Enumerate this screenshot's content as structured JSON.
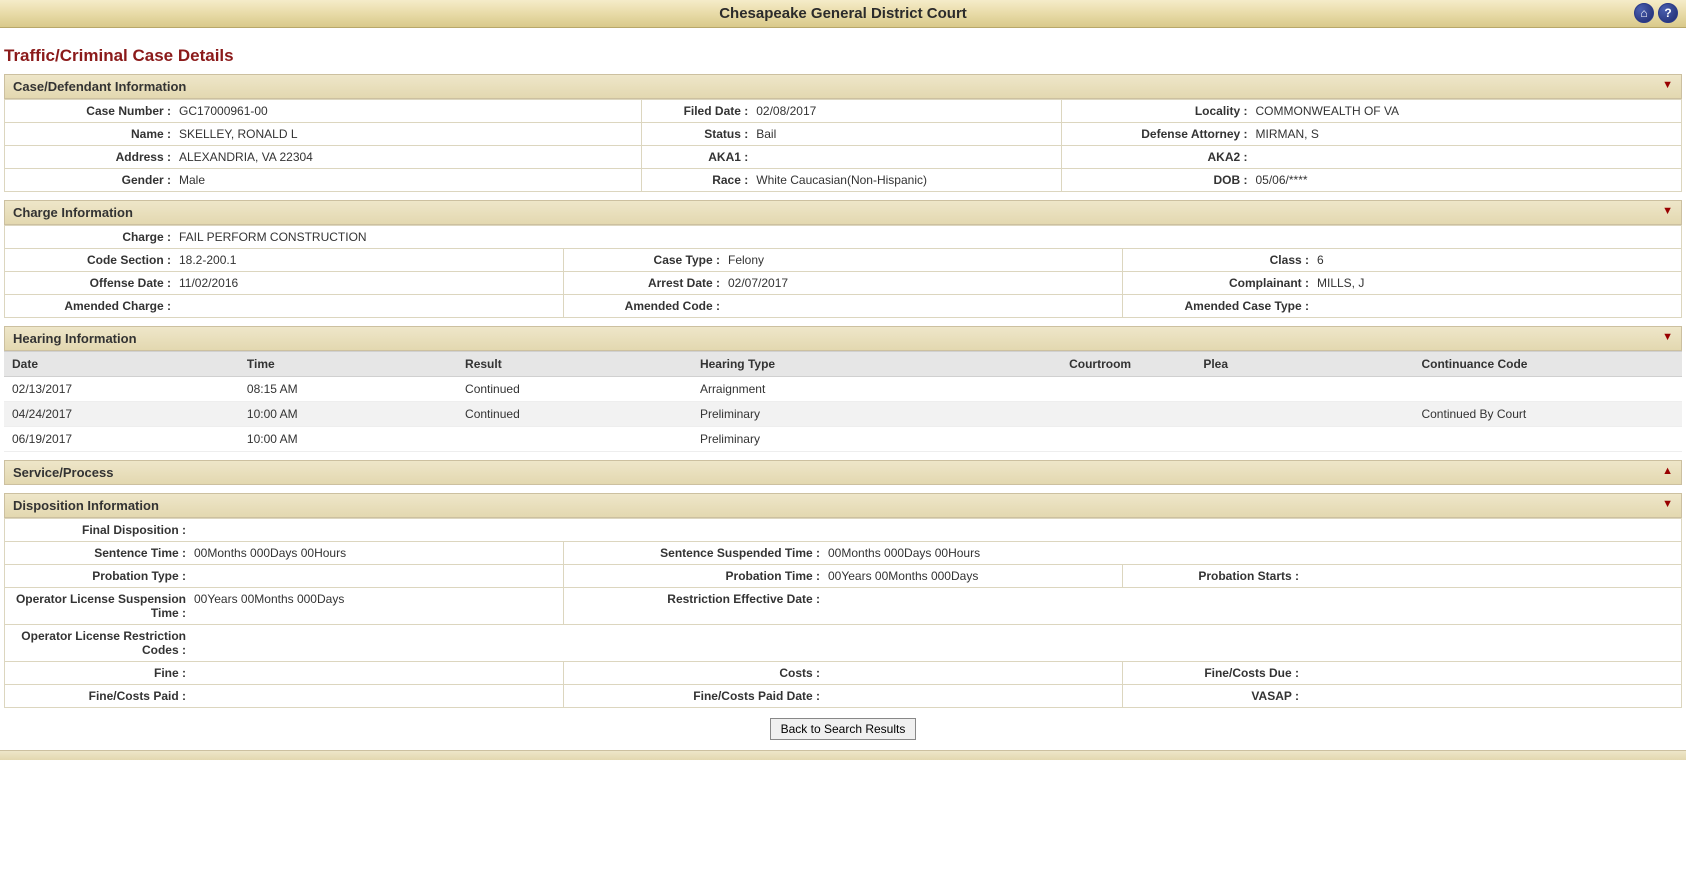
{
  "header": {
    "court_name": "Chesapeake General District Court"
  },
  "page_title": "Traffic/Criminal Case Details",
  "sections": {
    "case_defendant": {
      "title": "Case/Defendant Information",
      "case_number_lbl": "Case Number :",
      "case_number": "GC17000961-00",
      "filed_date_lbl": "Filed Date :",
      "filed_date": "02/08/2017",
      "locality_lbl": "Locality :",
      "locality": "COMMONWEALTH OF VA",
      "name_lbl": "Name :",
      "name": "SKELLEY, RONALD L",
      "status_lbl": "Status :",
      "status": "Bail",
      "def_atty_lbl": "Defense Attorney :",
      "def_atty": "MIRMAN, S",
      "address_lbl": "Address :",
      "address": "ALEXANDRIA, VA 22304",
      "aka1_lbl": "AKA1 :",
      "aka1": "",
      "aka2_lbl": "AKA2 :",
      "aka2": "",
      "gender_lbl": "Gender :",
      "gender": "Male",
      "race_lbl": "Race :",
      "race": "White Caucasian(Non-Hispanic)",
      "dob_lbl": "DOB :",
      "dob": "05/06/****"
    },
    "charge": {
      "title": "Charge Information",
      "charge_lbl": "Charge :",
      "charge": "FAIL PERFORM CONSTRUCTION",
      "code_section_lbl": "Code Section :",
      "code_section": "18.2-200.1",
      "case_type_lbl": "Case Type :",
      "case_type": "Felony",
      "class_lbl": "Class :",
      "class": "6",
      "offense_date_lbl": "Offense Date :",
      "offense_date": "11/02/2016",
      "arrest_date_lbl": "Arrest Date :",
      "arrest_date": "02/07/2017",
      "complainant_lbl": "Complainant :",
      "complainant": "MILLS, J",
      "amended_charge_lbl": "Amended Charge :",
      "amended_charge": "",
      "amended_code_lbl": "Amended Code :",
      "amended_code": "",
      "amended_case_type_lbl": "Amended Case Type :",
      "amended_case_type": ""
    },
    "hearing": {
      "title": "Hearing Information",
      "columns": {
        "date": "Date",
        "time": "Time",
        "result": "Result",
        "hearing_type": "Hearing Type",
        "courtroom": "Courtroom",
        "plea": "Plea",
        "continuance": "Continuance Code"
      },
      "rows": [
        {
          "date": "02/13/2017",
          "time": "08:15 AM",
          "result": "Continued",
          "hearing_type": "Arraignment",
          "courtroom": "",
          "plea": "",
          "continuance": ""
        },
        {
          "date": "04/24/2017",
          "time": "10:00 AM",
          "result": "Continued",
          "hearing_type": "Preliminary",
          "courtroom": "",
          "plea": "",
          "continuance": "Continued By Court"
        },
        {
          "date": "06/19/2017",
          "time": "10:00 AM",
          "result": "",
          "hearing_type": "Preliminary",
          "courtroom": "",
          "plea": "",
          "continuance": ""
        }
      ]
    },
    "service": {
      "title": "Service/Process"
    },
    "disposition": {
      "title": "Disposition Information",
      "final_disp_lbl": "Final Disposition :",
      "final_disp": "",
      "sentence_time_lbl": "Sentence Time :",
      "sentence_time": "00Months 000Days 00Hours",
      "sentence_susp_lbl": "Sentence Suspended Time :",
      "sentence_susp": "00Months 000Days 00Hours",
      "probation_type_lbl": "Probation Type :",
      "probation_type": "",
      "probation_time_lbl": "Probation Time :",
      "probation_time": "00Years 00Months 000Days",
      "probation_starts_lbl": "Probation Starts :",
      "probation_starts": "",
      "ols_time_lbl": "Operator License Suspension Time :",
      "ols_time": "00Years 00Months 000Days",
      "restrict_eff_lbl": "Restriction Effective Date :",
      "restrict_eff": "",
      "olr_codes_lbl": "Operator License Restriction Codes :",
      "olr_codes": "",
      "fine_lbl": "Fine :",
      "fine": "",
      "costs_lbl": "Costs :",
      "costs": "",
      "fine_costs_due_lbl": "Fine/Costs Due :",
      "fine_costs_due": "",
      "fine_costs_paid_lbl": "Fine/Costs Paid :",
      "fine_costs_paid": "",
      "fine_costs_paid_date_lbl": "Fine/Costs Paid Date :",
      "fine_costs_paid_date": "",
      "vasap_lbl": "VASAP :",
      "vasap": ""
    }
  },
  "buttons": {
    "back": "Back to Search Results"
  },
  "style": {
    "header_gradient": [
      "#f5ecc9",
      "#d9c98a"
    ],
    "section_header_bg": [
      "#eee6c9",
      "#e3d8b0"
    ],
    "cell_border": "#dcd6bf",
    "page_title_color": "#8b1a1a",
    "icon_bg": "#1e2a6e"
  }
}
